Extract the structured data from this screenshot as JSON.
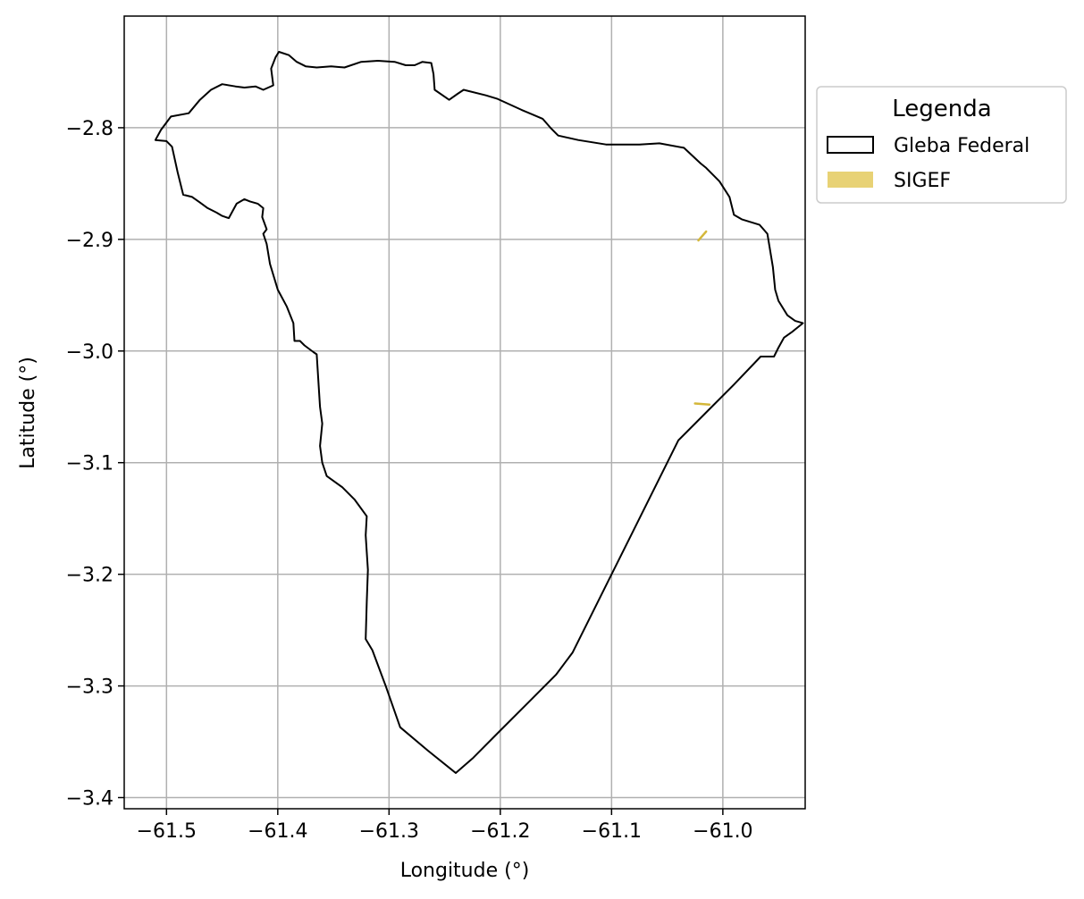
{
  "chart_data": {
    "type": "map",
    "xlabel": "Longitude (°)",
    "ylabel": "Latitude (°)",
    "xlim": [
      -61.538,
      -60.926
    ],
    "ylim": [
      -3.41,
      -2.7
    ],
    "grid": true,
    "x_ticks": [
      -61.5,
      -61.4,
      -61.3,
      -61.2,
      -61.1,
      -61.0
    ],
    "x_tick_labels": [
      "−61.5",
      "−61.4",
      "−61.3",
      "−61.2",
      "−61.1",
      "−61.0"
    ],
    "y_ticks": [
      -2.8,
      -2.9,
      -3.0,
      -3.1,
      -3.2,
      -3.3,
      -3.4
    ],
    "y_tick_labels": [
      "−2.8",
      "−2.9",
      "−3.0",
      "−3.1",
      "−3.2",
      "−3.3",
      "−3.4"
    ],
    "legend": {
      "title": "Legenda",
      "placement": "outside-right-top",
      "entries": [
        {
          "label": "Gleba Federal",
          "style": "outline",
          "color": "#000000"
        },
        {
          "label": "SIGEF",
          "style": "fill",
          "color": "#e8d275"
        }
      ]
    },
    "layers": [
      {
        "name": "Gleba Federal",
        "color": "#000000",
        "fill": "none",
        "closed": true,
        "coordinates": [
          [
            -61.51,
            -2.811
          ],
          [
            -61.505,
            -2.802
          ],
          [
            -61.496,
            -2.79
          ],
          [
            -61.48,
            -2.787
          ],
          [
            -61.47,
            -2.775
          ],
          [
            -61.46,
            -2.766
          ],
          [
            -61.45,
            -2.761
          ],
          [
            -61.438,
            -2.763
          ],
          [
            -61.43,
            -2.764
          ],
          [
            -61.42,
            -2.763
          ],
          [
            -61.413,
            -2.766
          ],
          [
            -61.404,
            -2.762
          ],
          [
            -61.406,
            -2.747
          ],
          [
            -61.402,
            -2.737
          ],
          [
            -61.399,
            -2.732
          ],
          [
            -61.39,
            -2.735
          ],
          [
            -61.383,
            -2.741
          ],
          [
            -61.375,
            -2.745
          ],
          [
            -61.365,
            -2.746
          ],
          [
            -61.352,
            -2.745
          ],
          [
            -61.34,
            -2.746
          ],
          [
            -61.325,
            -2.741
          ],
          [
            -61.31,
            -2.74
          ],
          [
            -61.295,
            -2.741
          ],
          [
            -61.285,
            -2.744
          ],
          [
            -61.277,
            -2.744
          ],
          [
            -61.27,
            -2.741
          ],
          [
            -61.262,
            -2.742
          ],
          [
            -61.26,
            -2.752
          ],
          [
            -61.259,
            -2.766
          ],
          [
            -61.246,
            -2.775
          ],
          [
            -61.239,
            -2.77
          ],
          [
            -61.233,
            -2.766
          ],
          [
            -61.213,
            -2.771
          ],
          [
            -61.203,
            -2.774
          ],
          [
            -61.181,
            -2.784
          ],
          [
            -61.162,
            -2.792
          ],
          [
            -61.155,
            -2.8
          ],
          [
            -61.148,
            -2.807
          ],
          [
            -61.13,
            -2.811
          ],
          [
            -61.105,
            -2.815
          ],
          [
            -61.075,
            -2.815
          ],
          [
            -61.057,
            -2.814
          ],
          [
            -61.035,
            -2.818
          ],
          [
            -61.02,
            -2.832
          ],
          [
            -61.015,
            -2.836
          ],
          [
            -61.003,
            -2.848
          ],
          [
            -60.994,
            -2.862
          ],
          [
            -60.99,
            -2.878
          ],
          [
            -60.983,
            -2.882
          ],
          [
            -60.967,
            -2.887
          ],
          [
            -60.96,
            -2.895
          ],
          [
            -60.955,
            -2.925
          ],
          [
            -60.953,
            -2.945
          ],
          [
            -60.95,
            -2.955
          ],
          [
            -60.942,
            -2.968
          ],
          [
            -60.935,
            -2.973
          ],
          [
            -60.928,
            -2.975
          ],
          [
            -60.938,
            -2.983
          ],
          [
            -60.945,
            -2.988
          ],
          [
            -60.95,
            -2.997
          ],
          [
            -60.954,
            -3.005
          ],
          [
            -60.961,
            -3.005
          ],
          [
            -60.966,
            -3.005
          ],
          [
            -60.99,
            -3.03
          ],
          [
            -61.015,
            -3.055
          ],
          [
            -61.04,
            -3.08
          ],
          [
            -61.06,
            -3.12
          ],
          [
            -61.08,
            -3.16
          ],
          [
            -61.1,
            -3.2
          ],
          [
            -61.12,
            -3.24
          ],
          [
            -61.135,
            -3.27
          ],
          [
            -61.15,
            -3.29
          ],
          [
            -61.175,
            -3.315
          ],
          [
            -61.2,
            -3.34
          ],
          [
            -61.225,
            -3.365
          ],
          [
            -61.24,
            -3.378
          ],
          [
            -61.265,
            -3.358
          ],
          [
            -61.29,
            -3.337
          ],
          [
            -61.303,
            -3.3
          ],
          [
            -61.315,
            -3.268
          ],
          [
            -61.321,
            -3.258
          ],
          [
            -61.32,
            -3.225
          ],
          [
            -61.319,
            -3.196
          ],
          [
            -61.32,
            -3.18
          ],
          [
            -61.321,
            -3.165
          ],
          [
            -61.32,
            -3.148
          ],
          [
            -61.331,
            -3.133
          ],
          [
            -61.342,
            -3.122
          ],
          [
            -61.356,
            -3.112
          ],
          [
            -61.36,
            -3.1
          ],
          [
            -61.362,
            -3.085
          ],
          [
            -61.36,
            -3.065
          ],
          [
            -61.362,
            -3.05
          ],
          [
            -61.363,
            -3.035
          ],
          [
            -61.365,
            -3.003
          ],
          [
            -61.368,
            -3.001
          ],
          [
            -61.376,
            -2.995
          ],
          [
            -61.38,
            -2.991
          ],
          [
            -61.385,
            -2.991
          ],
          [
            -61.386,
            -2.975
          ],
          [
            -61.392,
            -2.96
          ],
          [
            -61.4,
            -2.945
          ],
          [
            -61.407,
            -2.922
          ],
          [
            -61.41,
            -2.904
          ],
          [
            -61.413,
            -2.895
          ],
          [
            -61.41,
            -2.891
          ],
          [
            -61.414,
            -2.88
          ],
          [
            -61.413,
            -2.872
          ],
          [
            -61.418,
            -2.868
          ],
          [
            -61.425,
            -2.866
          ],
          [
            -61.43,
            -2.864
          ],
          [
            -61.437,
            -2.868
          ],
          [
            -61.444,
            -2.881
          ],
          [
            -61.45,
            -2.879
          ],
          [
            -61.455,
            -2.876
          ],
          [
            -61.463,
            -2.872
          ],
          [
            -61.47,
            -2.867
          ],
          [
            -61.477,
            -2.862
          ],
          [
            -61.485,
            -2.86
          ],
          [
            -61.49,
            -2.84
          ],
          [
            -61.495,
            -2.817
          ],
          [
            -61.5,
            -2.812
          ],
          [
            -61.51,
            -2.811
          ]
        ]
      },
      {
        "name": "SIGEF",
        "color": "#d4b73a",
        "features": [
          [
            [
              -61.022,
              -2.901
            ],
            [
              -61.015,
              -2.893
            ]
          ],
          [
            [
              -61.025,
              -3.047
            ],
            [
              -61.012,
              -3.048
            ]
          ]
        ]
      }
    ]
  }
}
